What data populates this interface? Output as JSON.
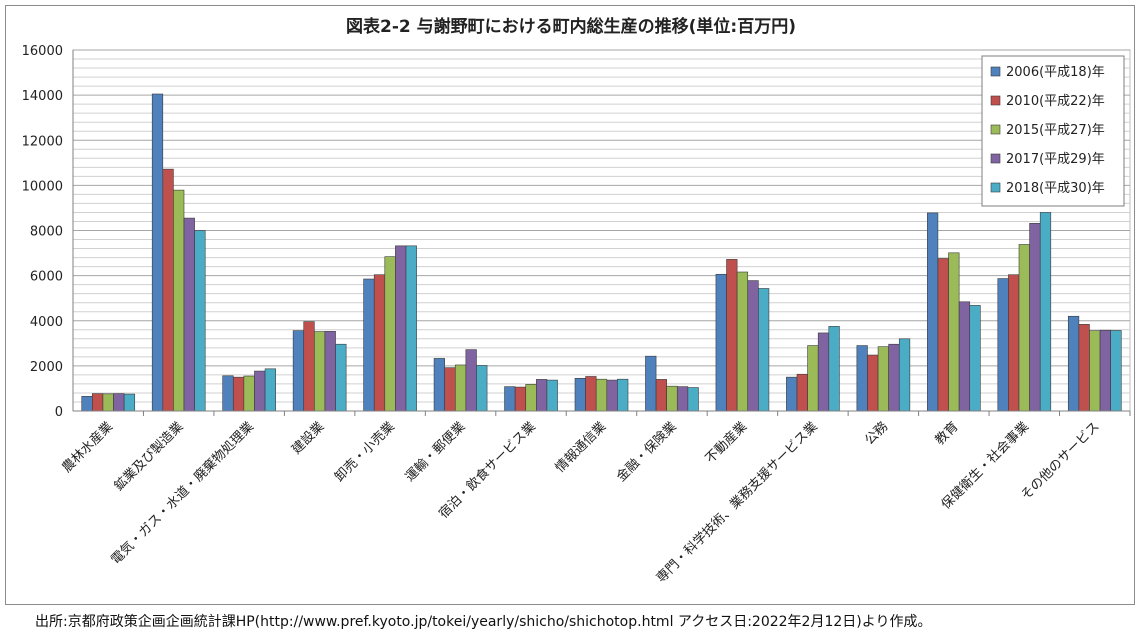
{
  "chart_data": {
    "type": "bar",
    "title": "図表2-2 与謝野町における町内総生産の推移(単位:百万円)",
    "xlabel": "",
    "ylabel": "",
    "ylim": [
      0,
      16000
    ],
    "yticks": [
      0,
      2000,
      4000,
      6000,
      8000,
      10000,
      12000,
      14000,
      16000
    ],
    "grid": true,
    "legend_position": "top-right",
    "categories": [
      "農林水産業",
      "鉱業及び製造業",
      "電気・ガス・水道・廃棄物処理業",
      "建設業",
      "卸売・小売業",
      "運輸・郵便業",
      "宿泊・飲食サービス業",
      "情報通信業",
      "金融・保険業",
      "不動産業",
      "専門・科学技術、業務支援サービス業",
      "公務",
      "教育",
      "保健衛生・社会事業",
      "その他のサービス"
    ],
    "series": [
      {
        "name": "2006(平成18)年",
        "color": "#4f81bd",
        "values": [
          650,
          14050,
          1560,
          3560,
          5850,
          2330,
          1080,
          1450,
          2430,
          6060,
          1500,
          2900,
          8780,
          5870,
          4200
        ]
      },
      {
        "name": "2010(平成22)年",
        "color": "#c0504d",
        "values": [
          770,
          10720,
          1500,
          3960,
          6040,
          1920,
          1060,
          1530,
          1400,
          6720,
          1630,
          2480,
          6760,
          6040,
          3840
        ]
      },
      {
        "name": "2015(平成27)年",
        "color": "#9bbb59",
        "values": [
          760,
          9790,
          1550,
          3520,
          6840,
          2040,
          1180,
          1410,
          1100,
          6160,
          2900,
          2850,
          7010,
          7380,
          3560
        ]
      },
      {
        "name": "2017(平成29)年",
        "color": "#8064a2",
        "values": [
          770,
          8550,
          1770,
          3530,
          7320,
          2720,
          1400,
          1370,
          1080,
          5780,
          3460,
          2960,
          4840,
          8320,
          3580
        ]
      },
      {
        "name": "2018(平成30)年",
        "color": "#4bacc6",
        "values": [
          750,
          8000,
          1870,
          2960,
          7320,
          2020,
          1370,
          1410,
          1040,
          5430,
          3750,
          3200,
          4680,
          8800,
          3570
        ]
      }
    ]
  },
  "source_note": "出所:京都府政策企画企画統計課HP(http://www.pref.kyoto.jp/tokei/yearly/shicho/shichotop.html アクセス日:2022年2月12日)より作成。"
}
